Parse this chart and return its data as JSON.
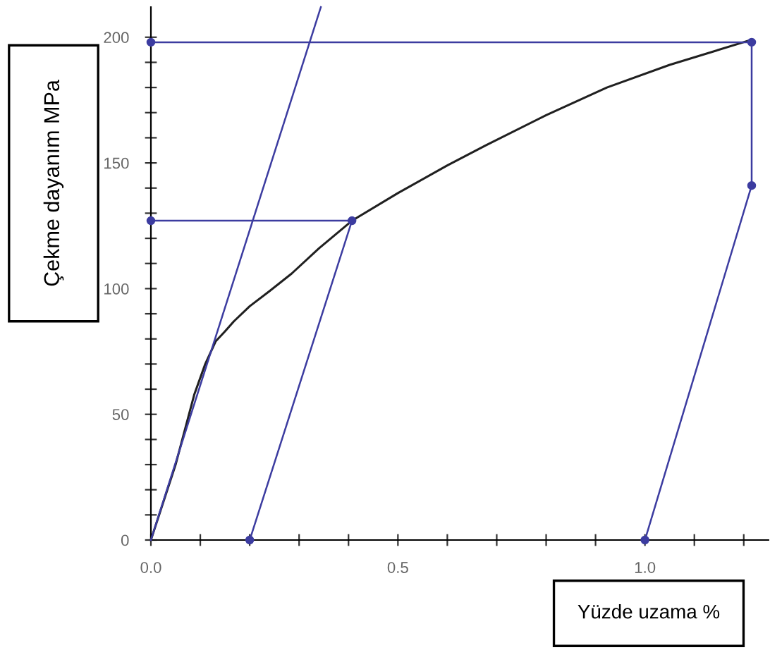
{
  "chart_data": {
    "type": "line",
    "xlabel": "Yüzde uzama %",
    "ylabel": "Çekme dayanım MPa",
    "xlim": [
      0,
      1.25
    ],
    "ylim": [
      0,
      212
    ],
    "xticks": [
      {
        "value": 0,
        "label": "0.0"
      },
      {
        "value": 0.1,
        "label": null
      },
      {
        "value": 0.2,
        "label": null
      },
      {
        "value": 0.3,
        "label": null
      },
      {
        "value": 0.4,
        "label": null
      },
      {
        "value": 0.5,
        "label": "0.5"
      },
      {
        "value": 0.6,
        "label": null
      },
      {
        "value": 0.7,
        "label": null
      },
      {
        "value": 0.8,
        "label": null
      },
      {
        "value": 0.9,
        "label": null
      },
      {
        "value": 1.0,
        "label": "1.0"
      },
      {
        "value": 1.1,
        "label": null
      },
      {
        "value": 1.2,
        "label": null
      }
    ],
    "yticks": [
      0,
      {
        "value": 10,
        "label": null
      },
      {
        "value": 20,
        "label": null
      },
      {
        "value": 30,
        "label": null
      },
      {
        "value": 40,
        "label": null
      },
      50,
      {
        "value": 60,
        "label": null
      },
      {
        "value": 70,
        "label": null
      },
      {
        "value": 80,
        "label": null
      },
      {
        "value": 90,
        "label": null
      },
      100,
      {
        "value": 110,
        "label": null
      },
      {
        "value": 120,
        "label": null
      },
      {
        "value": 130,
        "label": null
      },
      {
        "value": 140,
        "label": null
      },
      150,
      {
        "value": 160,
        "label": null
      },
      {
        "value": 170,
        "label": null
      },
      {
        "value": 180,
        "label": null
      },
      {
        "value": 190,
        "label": null
      },
      200
    ],
    "grid": false,
    "legend": false,
    "series": [
      {
        "color": "#202020",
        "x": [
          0,
          0.05,
          0.088,
          0.11,
          0.131,
          0.15,
          0.168,
          0.2,
          0.24,
          0.285,
          0.34,
          0.407,
          0.5,
          0.6,
          0.678,
          0.8,
          0.923,
          1.05,
          1.216
        ],
        "values": [
          0,
          30,
          58,
          70,
          79,
          83,
          87,
          93,
          99,
          106,
          116,
          127,
          138,
          149,
          157,
          169,
          180,
          189,
          199
        ],
        "marker": "none"
      },
      {
        "color": "#3c3ca0",
        "x": [
          0,
          0.344
        ],
        "values": [
          0,
          212
        ],
        "marker": "none"
      },
      {
        "color": "#3c3ca0",
        "x": [
          0,
          0.407,
          0.2
        ],
        "values": [
          127,
          127,
          0
        ],
        "marker": "circle"
      },
      {
        "color": "#3c3ca0",
        "x": [
          0,
          1.216,
          1.216,
          1.0
        ],
        "values": [
          198,
          198,
          141,
          0
        ],
        "marker": "circle"
      }
    ]
  }
}
